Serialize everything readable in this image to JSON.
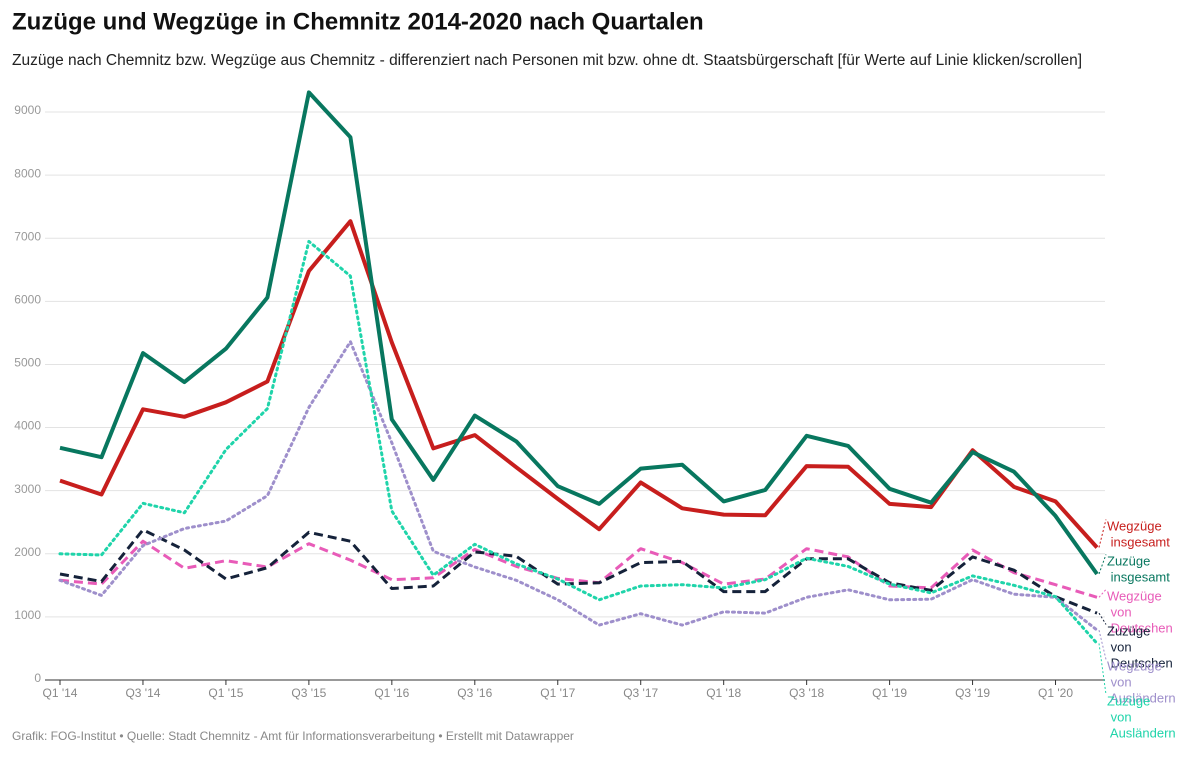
{
  "chart_data": {
    "type": "line",
    "title": "Zuzüge und Wegzüge in Chemnitz 2014-2020 nach Quartalen",
    "subtitle": "Zuzüge nach Chemnitz bzw. Wegzüge aus Chemnitz - differenziert nach Personen mit bzw. ohne dt. Staatsbürgerschaft [für Werte auf Linie klicken/scrollen]",
    "source": "Grafik: FOG-Institut • Quelle: Stadt Chemnitz - Amt für Informationsverarbeitung • Erstellt mit Datawrapper",
    "categories": [
      "Q1 '14",
      null,
      "Q3 '14",
      null,
      "Q1 '15",
      null,
      "Q3 '15",
      null,
      "Q1 '16",
      null,
      "Q3 '16",
      null,
      "Q1 '17",
      null,
      "Q3 '17",
      null,
      "Q1 '18",
      null,
      "Q3 '18",
      null,
      "Q1 '19",
      null,
      "Q3 '19",
      null,
      "Q1 '20",
      null
    ],
    "ylim": [
      0,
      9000
    ],
    "yticks": [
      0,
      1000,
      2000,
      3000,
      4000,
      5000,
      6000,
      7000,
      8000,
      9000
    ],
    "grid": true,
    "series": [
      {
        "name": "Wegzüge insgesamt",
        "color": "#c71e1d",
        "style": "solid",
        "values": [
          3160,
          2940,
          4290,
          4170,
          4400,
          4730,
          6480,
          7270,
          5350,
          3670,
          3880,
          3370,
          2870,
          2390,
          3130,
          2720,
          2620,
          2610,
          3390,
          3380,
          2790,
          2740,
          3640,
          3060,
          2830,
          2100
        ]
      },
      {
        "name": "Zuzüge insgesamt",
        "color": "#08775f",
        "style": "solid",
        "values": [
          3680,
          3530,
          5180,
          4720,
          5250,
          6060,
          9310,
          8600,
          4130,
          3170,
          4190,
          3780,
          3070,
          2790,
          3350,
          3410,
          2830,
          3010,
          3870,
          3710,
          3030,
          2810,
          3610,
          3300,
          2600,
          1680
        ]
      },
      {
        "name": "Wegzüge von Deutschen",
        "color": "#e85bb8",
        "style": "dashed",
        "values": [
          1580,
          1520,
          2200,
          1770,
          1890,
          1790,
          2160,
          1900,
          1590,
          1620,
          2070,
          1800,
          1610,
          1540,
          2080,
          1860,
          1520,
          1600,
          2080,
          1950,
          1490,
          1460,
          2060,
          1700,
          1510,
          1310
        ]
      },
      {
        "name": "Zuzüge von Deutschen",
        "color": "#15223a",
        "style": "dashed",
        "values": [
          1680,
          1560,
          2380,
          2060,
          1600,
          1780,
          2340,
          2200,
          1450,
          1490,
          2030,
          1960,
          1520,
          1540,
          1860,
          1880,
          1400,
          1400,
          1920,
          1920,
          1540,
          1420,
          1950,
          1740,
          1320,
          1060
        ]
      },
      {
        "name": "Wegzüge von Ausländern",
        "color": "#9e8fcb",
        "style": "dotted",
        "values": [
          1580,
          1340,
          2130,
          2400,
          2520,
          2920,
          4320,
          5360,
          3760,
          2040,
          1790,
          1580,
          1270,
          870,
          1050,
          870,
          1080,
          1060,
          1310,
          1430,
          1270,
          1280,
          1590,
          1360,
          1310,
          790
        ]
      },
      {
        "name": "Zuzüge von Ausländern",
        "color": "#1fd4aa",
        "style": "dotted",
        "values": [
          2000,
          1980,
          2800,
          2650,
          3650,
          4300,
          6950,
          6400,
          2680,
          1660,
          2150,
          1840,
          1600,
          1270,
          1490,
          1510,
          1460,
          1590,
          1930,
          1800,
          1520,
          1380,
          1650,
          1500,
          1320,
          580
        ]
      }
    ]
  }
}
